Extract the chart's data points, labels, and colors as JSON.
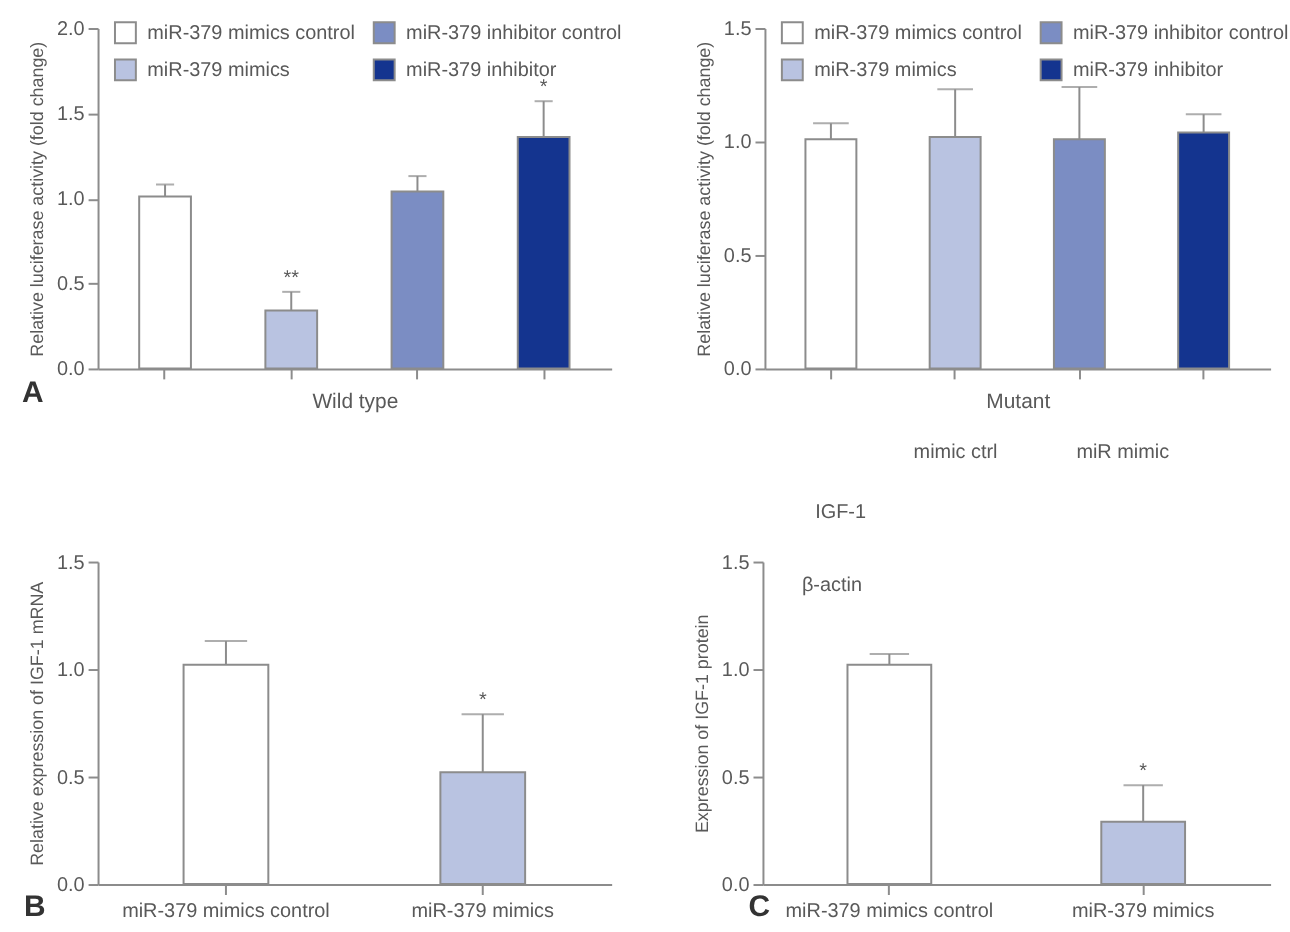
{
  "chart_data": [
    {
      "type": "bar",
      "ylabel": "Relative luciferase activity (fold change)",
      "xlabel": "Wild type",
      "categories": [
        null,
        null,
        null,
        null
      ],
      "series": [
        {
          "name": "miR-379 mimics control",
          "color": "#ffffff",
          "values": [
            1.01,
            null,
            null,
            null
          ],
          "errors": [
            [
              1.01,
              1.08
            ],
            null,
            null,
            null
          ]
        },
        {
          "name": "miR-379 mimics",
          "color": "#b9c3e1",
          "values": [
            null,
            0.34,
            null,
            null
          ],
          "errors": [
            null,
            [
              0.34,
              0.45
            ],
            null,
            null
          ],
          "value_labels": [
            null,
            "**",
            null,
            null
          ]
        },
        {
          "name": "miR-379 inhibitor control",
          "color": "#7b8dc3",
          "values": [
            null,
            null,
            1.04,
            null
          ],
          "errors": [
            null,
            null,
            [
              1.04,
              1.13
            ],
            null
          ]
        },
        {
          "name": "miR-379 inhibitor",
          "color": "#14348f",
          "values": [
            null,
            null,
            null,
            1.36
          ],
          "errors": [
            null,
            null,
            null,
            [
              1.36,
              1.57
            ]
          ],
          "value_labels": [
            null,
            null,
            null,
            "*"
          ]
        }
      ],
      "ylim": [
        0,
        2
      ],
      "yticks": [
        {
          "value": 0,
          "label": "0.0"
        },
        {
          "value": 0.5,
          "label": "0.5"
        },
        {
          "value": 1,
          "label": "1.0"
        },
        {
          "value": 1.5,
          "label": "1.5"
        },
        {
          "value": 2,
          "label": "2.0"
        }
      ],
      "legend": "top",
      "annotations": [
        "A"
      ]
    },
    {
      "type": "bar",
      "ylabel": "Relative luciferase activity (fold change)",
      "xlabel": "Mutant",
      "categories": [
        null,
        null,
        null,
        null
      ],
      "series": [
        {
          "name": "miR-379 mimics control",
          "color": "#ffffff",
          "values": [
            1.01,
            null,
            null,
            null
          ],
          "errors": [
            [
              1.01,
              1.08
            ],
            null,
            null,
            null
          ]
        },
        {
          "name": "miR-379 mimics",
          "color": "#b9c3e1",
          "values": [
            null,
            1.02,
            null,
            null
          ],
          "errors": [
            null,
            [
              1.02,
              1.23
            ],
            null,
            null
          ]
        },
        {
          "name": "miR-379 inhibitor control",
          "color": "#7b8dc3",
          "values": [
            null,
            null,
            1.01,
            null
          ],
          "errors": [
            null,
            null,
            [
              1.01,
              1.24
            ],
            null
          ]
        },
        {
          "name": "miR-379 inhibitor",
          "color": "#14348f",
          "values": [
            null,
            null,
            null,
            1.04
          ],
          "errors": [
            null,
            null,
            null,
            [
              1.04,
              1.12
            ]
          ]
        }
      ],
      "ylim": [
        0,
        1.5
      ],
      "yticks": [
        {
          "value": 0,
          "label": "0.0"
        },
        {
          "value": 0.5,
          "label": "0.5"
        },
        {
          "value": 1,
          "label": "1.0"
        },
        {
          "value": 1.5,
          "label": "1.5"
        }
      ],
      "legend": "top"
    },
    {
      "type": "bar",
      "ylabel": "Relative expression of IGF-1 mRNA",
      "categories": [
        "miR-379 mimics control",
        "miR-379 mimics"
      ],
      "values": [
        1.02,
        0.52
      ],
      "colors": [
        "#ffffff",
        "#b9c3e1"
      ],
      "errors": [
        [
          1.02,
          1.13
        ],
        [
          0.52,
          0.79
        ]
      ],
      "value_labels": [
        null,
        "*"
      ],
      "ylim": [
        0,
        1.5
      ],
      "yticks": [
        {
          "value": 0,
          "label": "0.0"
        },
        {
          "value": 0.5,
          "label": "0.5"
        },
        {
          "value": 1,
          "label": "1.0"
        },
        {
          "value": 1.5,
          "label": "1.5"
        }
      ],
      "annotations": [
        "B"
      ]
    },
    {
      "type": "bar",
      "ylabel": "Expression of IGF-1 protein",
      "categories": [
        "miR-379 mimics control",
        "miR-379 mimics"
      ],
      "values": [
        1.02,
        0.29
      ],
      "colors": [
        "#ffffff",
        "#b9c3e1"
      ],
      "errors": [
        [
          1.02,
          1.07
        ],
        [
          0.29,
          0.46
        ]
      ],
      "value_labels": [
        null,
        "*"
      ],
      "ylim": [
        0,
        1.5
      ],
      "yticks": [
        {
          "value": 0,
          "label": "0.0"
        },
        {
          "value": 0.5,
          "label": "0.5"
        },
        {
          "value": 1,
          "label": "1.0"
        },
        {
          "value": 1.5,
          "label": "1.5"
        }
      ],
      "annotations": [
        "C",
        "mimic ctrl",
        "miR mimic",
        "IGF-1",
        "β-actin"
      ]
    }
  ]
}
